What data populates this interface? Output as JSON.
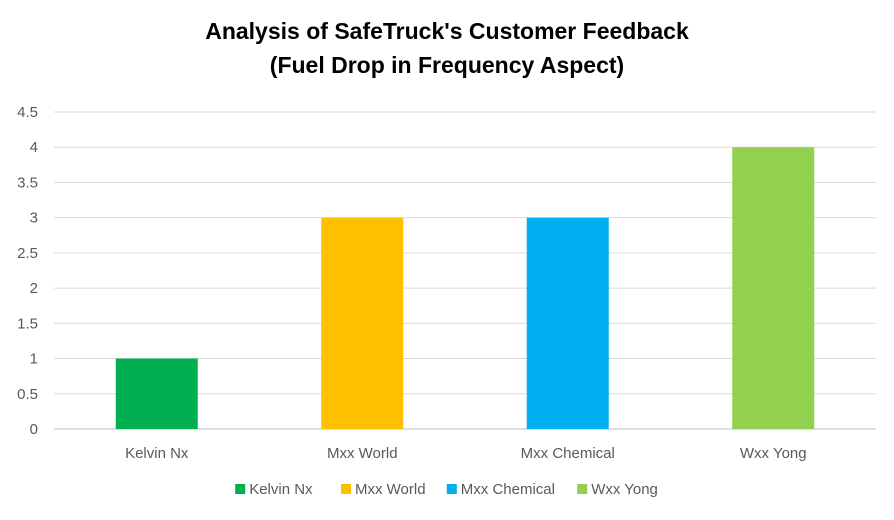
{
  "chart_data": {
    "type": "bar",
    "title": "Analysis of SafeTruck's Customer Feedback",
    "subtitle": "(Fuel Drop in Frequency Aspect)",
    "xlabel": "",
    "ylabel": "",
    "categories": [
      "Kelvin Nx",
      "Mxx World",
      "Mxx Chemical",
      "Wxx Yong"
    ],
    "values": [
      1,
      3,
      3,
      4
    ],
    "colors": [
      "#00B050",
      "#FFC000",
      "#00B0F0",
      "#92D050"
    ],
    "ylim": [
      0,
      4.5
    ],
    "yticks": [
      "0",
      "0.5",
      "1",
      "1.5",
      "2",
      "2.5",
      "3",
      "3.5",
      "4",
      "4.5"
    ],
    "grid": true,
    "legend_position": "bottom",
    "legend": [
      "Kelvin Nx",
      "Mxx World",
      "Mxx Chemical",
      "Wxx Yong"
    ]
  }
}
